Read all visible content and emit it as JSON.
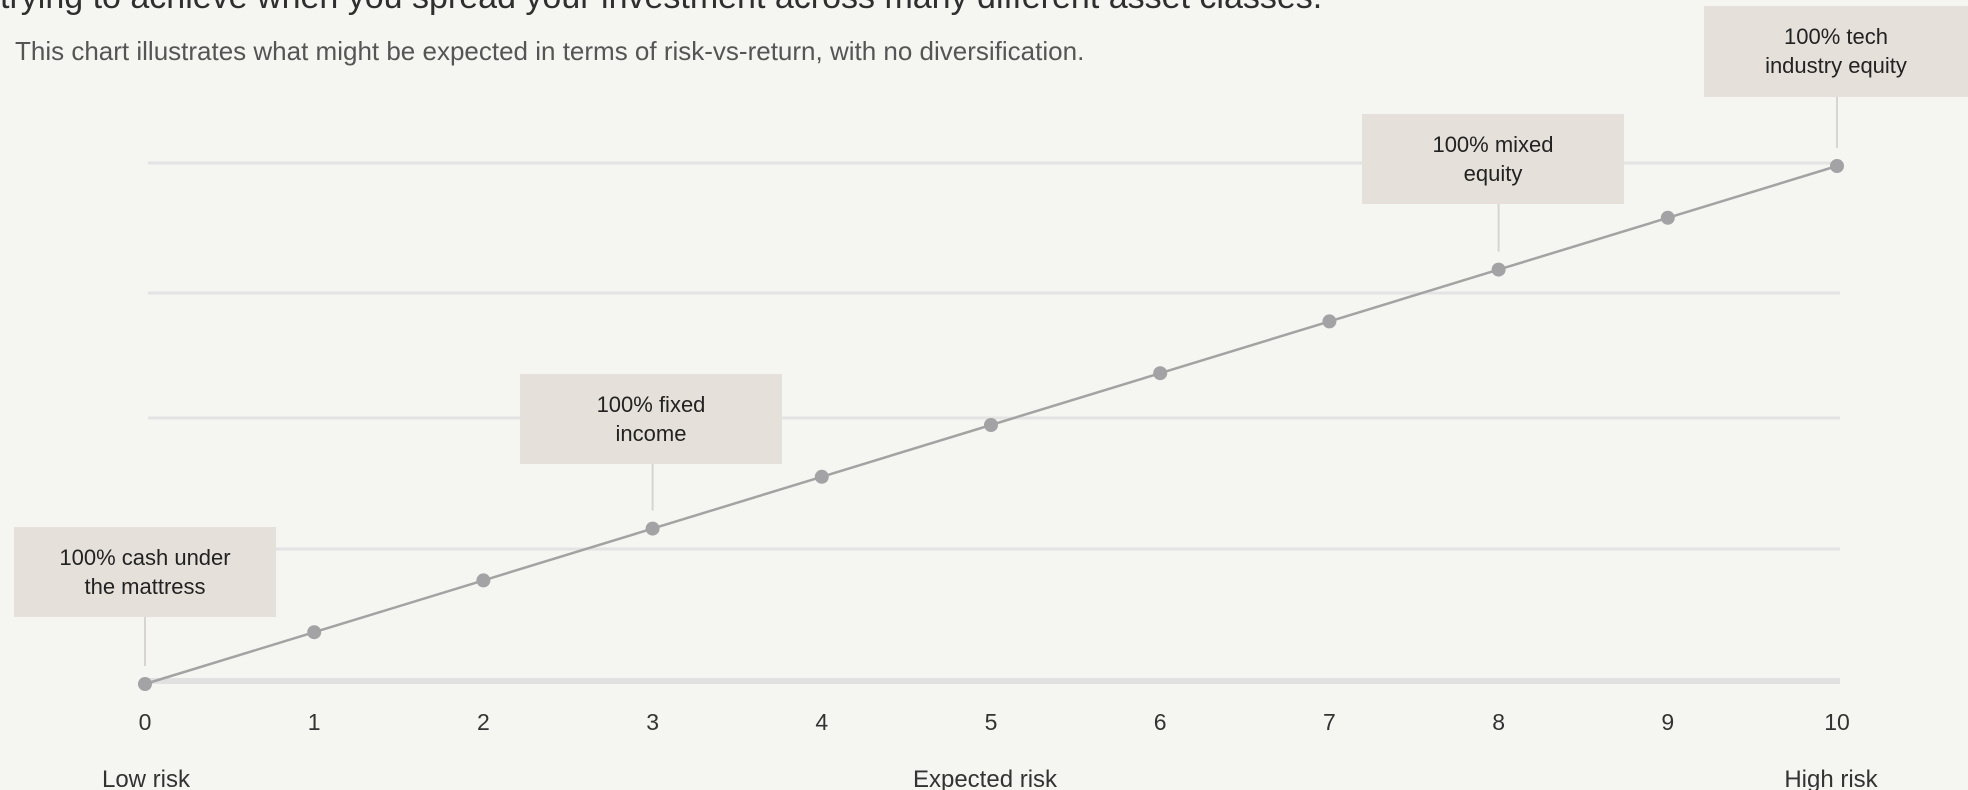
{
  "heading": "trying to achieve when you spread your investment across many different asset classes.",
  "subtitle": "This chart illustrates what might be expected in terms of risk-vs-return, with no diversification.",
  "chart_data": {
    "type": "line",
    "title": "",
    "xlabel": "Expected risk",
    "ylabel": "",
    "x_end_labels": {
      "low": "Low risk",
      "high": "High risk"
    },
    "x": [
      0,
      1,
      2,
      3,
      4,
      5,
      6,
      7,
      8,
      9,
      10
    ],
    "series": [
      {
        "values": [
          0,
          1,
          2,
          3,
          4,
          5,
          6,
          7,
          8,
          9,
          10
        ]
      }
    ],
    "xlim": [
      0,
      10
    ],
    "ylim": [
      0,
      10
    ],
    "grid": "horizontal",
    "legend": "none",
    "annotations": [
      {
        "x": 0,
        "lines": [
          "100% cash under",
          "the mattress"
        ]
      },
      {
        "x": 3,
        "lines": [
          "100% fixed",
          "income"
        ]
      },
      {
        "x": 8,
        "lines": [
          "100% mixed",
          "equity"
        ]
      },
      {
        "x": 10,
        "lines": [
          "100% tech",
          "industry equity"
        ]
      }
    ],
    "colors": {
      "line": "#a3a3a3",
      "point": "#a3a3a5",
      "callout": "#e5e1da",
      "grid": "#e3e3e3",
      "background": "#f5f5f1"
    }
  }
}
